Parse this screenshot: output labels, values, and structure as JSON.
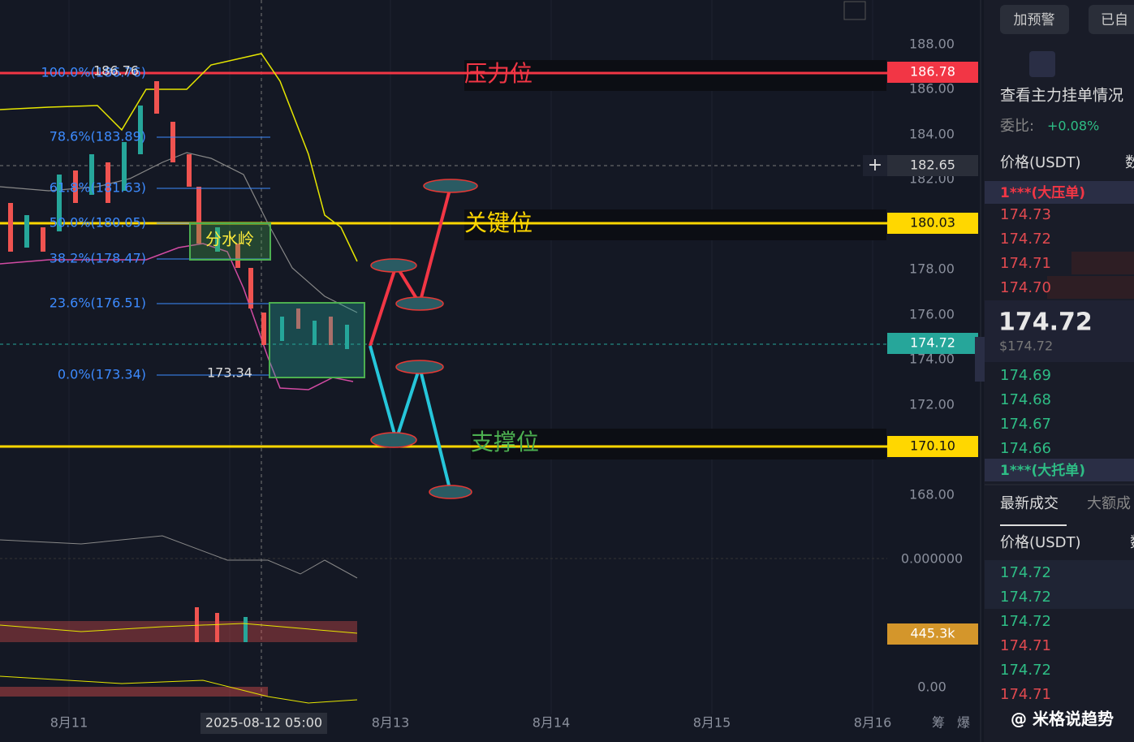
{
  "toolbar": {
    "buttons": [
      "加预警",
      "已自"
    ]
  },
  "price_axis": {
    "ticks": [
      "188.00",
      "186.00",
      "184.00",
      "182.00",
      "178.00",
      "176.00",
      "174.00",
      "172.00",
      "168.00"
    ],
    "indicator_ticks": [
      "0.000000",
      "0.00"
    ]
  },
  "badges": {
    "resistance": "186.78",
    "crosshair": "182.65",
    "key": "180.03",
    "last": "174.72",
    "support": "170.10",
    "volume": "445.3k"
  },
  "fibonacci": {
    "levels": [
      "100.0%(186.76)",
      "78.6%(183.89)",
      "61.8%(181.63)",
      "50.0%(180.05)",
      "38.2%(178.47)",
      "23.6%(176.51)",
      "0.0%(173.34)"
    ],
    "high": "186.76",
    "low": "173.34"
  },
  "annotations": {
    "resistance": "压力位",
    "key": "关键位",
    "support": "支撑位",
    "watershed": "分水岭"
  },
  "time_axis": {
    "labels": [
      "8月11",
      "8月13",
      "8月14",
      "8月15",
      "8月16"
    ],
    "crosshair": "2025-08-12 05:00",
    "icons": [
      "筹",
      "爆"
    ]
  },
  "order_book": {
    "title": "查看主力挂单情况",
    "ratio_label": "委比:",
    "ratio": "+0.08%",
    "header": [
      "价格(USDT)",
      "数"
    ],
    "ask_tag": "1***(大压单)",
    "asks": [
      "174.73",
      "174.72",
      "174.71",
      "174.70"
    ],
    "mid": "174.72",
    "mid_usd": "$174.72",
    "bids": [
      "174.69",
      "174.68",
      "174.67",
      "174.66"
    ],
    "bid_tag": "1***(大托单)"
  },
  "trades": {
    "tabs": [
      "最新成交",
      "大额成"
    ],
    "header": [
      "价格(USDT)",
      "数"
    ],
    "prices": [
      "174.72",
      "174.72",
      "174.72",
      "174.71",
      "174.72",
      "174.71"
    ]
  },
  "watermark": "@ 米格说趋势"
}
